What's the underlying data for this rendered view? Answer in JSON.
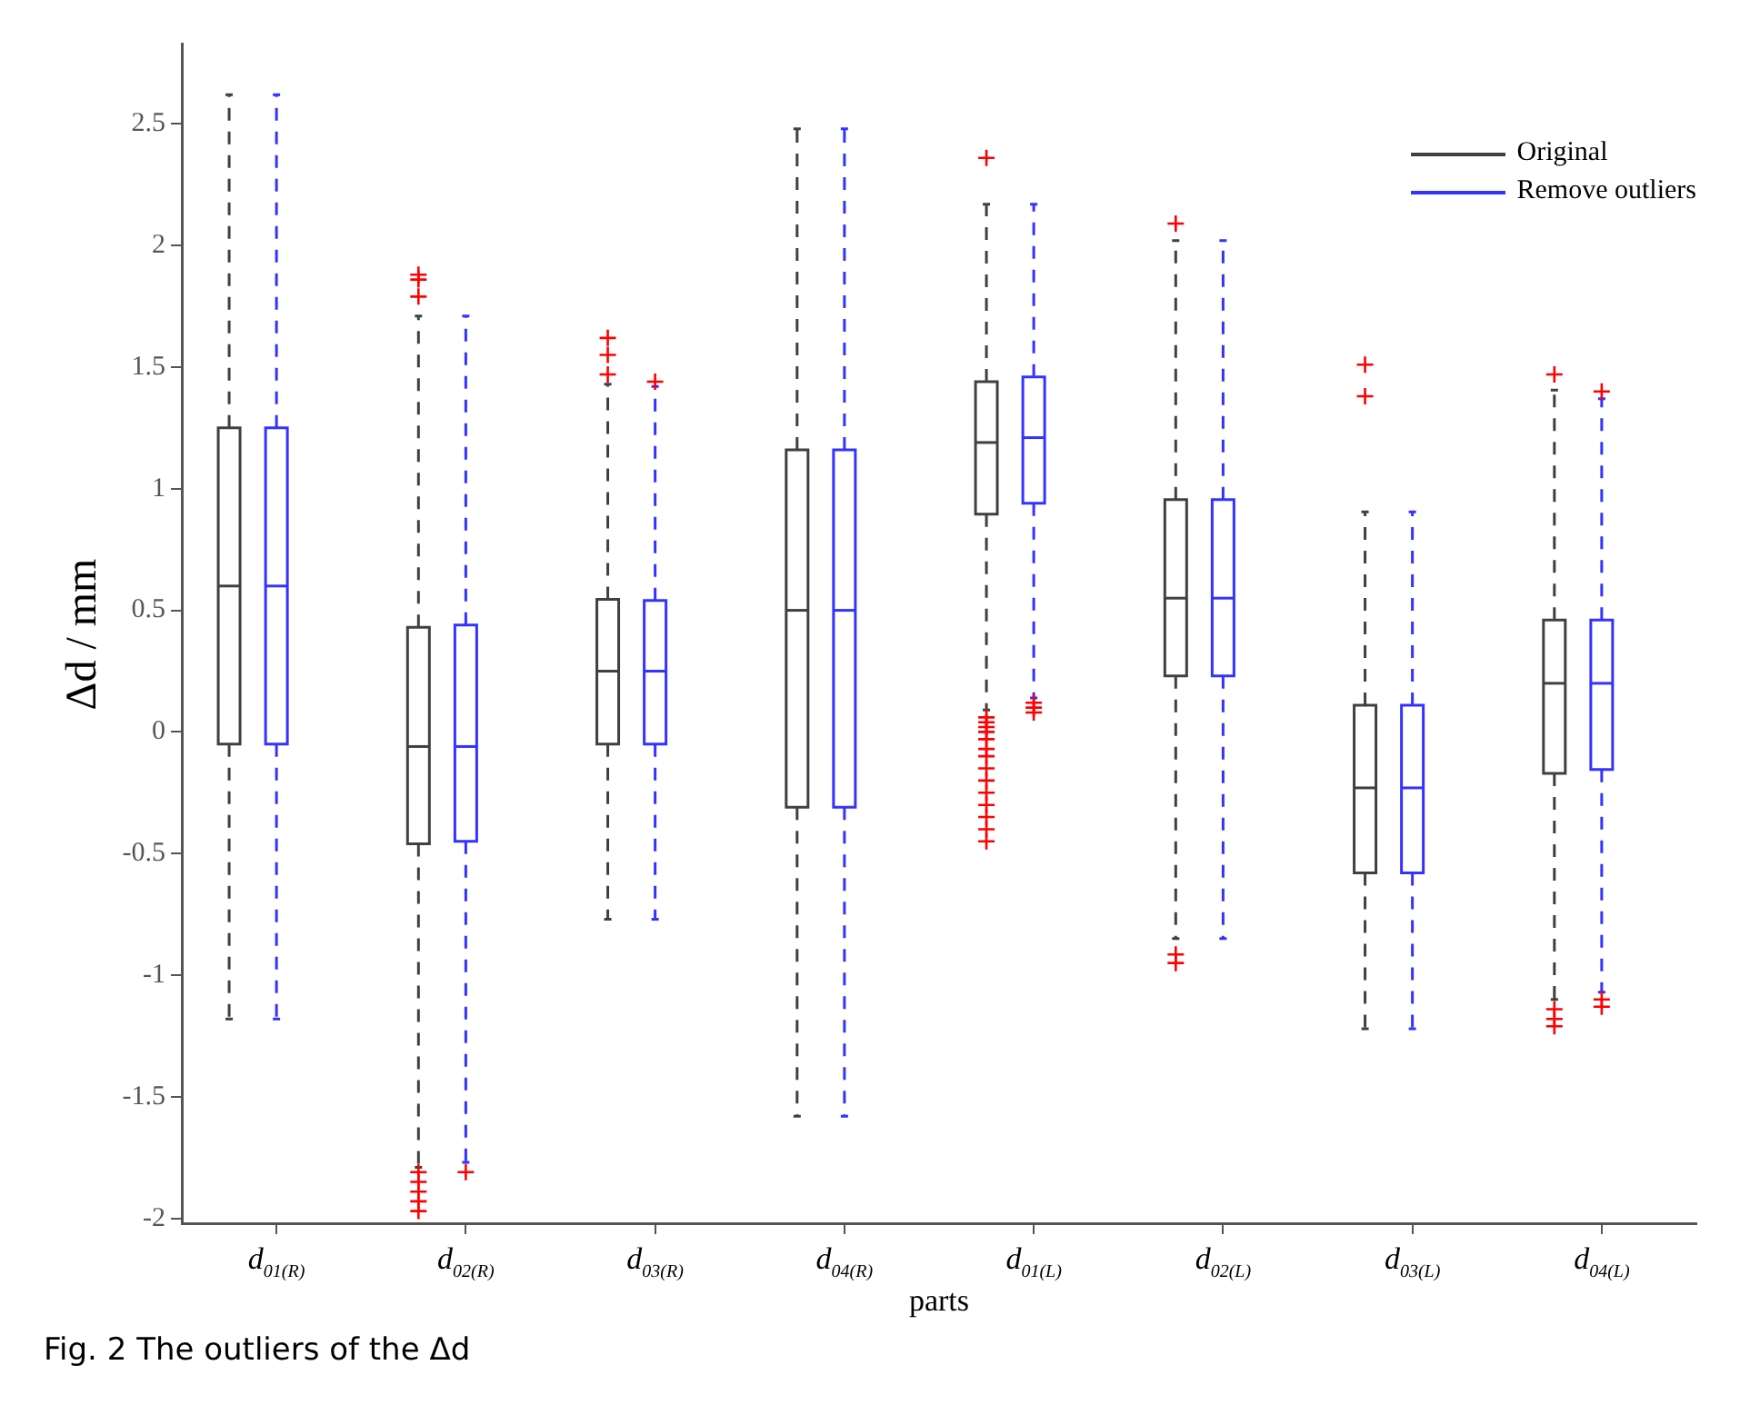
{
  "chart_data": {
    "type": "box",
    "xlabel": "parts",
    "ylabel": "Δd / mm",
    "annotations": [
      "Fig. 2  The outliers of the Δd"
    ],
    "categories": [
      "d$_{01(R)}$",
      "d$_{02(R)}$",
      "d$_{03(R)}$",
      "d$_{04(R)}$",
      "d$_{01(L)}$",
      "d$_{02(L)}$",
      "d$_{03(L)}$",
      "d$_{04(L)}$"
    ],
    "ylim": [
      -2.02,
      2.83
    ],
    "yticks": [
      -2,
      -1.5,
      -1,
      -0.5,
      0,
      0.5,
      1,
      1.5,
      2,
      2.5
    ],
    "grid": false,
    "legend": "top right",
    "marker": "cross",
    "line_style": "dashed",
    "series": [
      {
        "name": "Original",
        "color": "#404040",
        "boxes": [
          {
            "low": -1.18,
            "q1": -0.05,
            "median": 0.6,
            "q3": 1.25,
            "high": 2.62
          },
          {
            "low": -1.79,
            "q1": -0.46,
            "median": -0.06,
            "q3": 0.43,
            "high": 1.71,
            "outliers": [
              1.88,
              1.86,
              1.79,
              -1.81,
              -1.85,
              -1.89,
              -1.93,
              -1.97
            ]
          },
          {
            "low": -0.77,
            "q1": -0.05,
            "median": 0.25,
            "q3": 0.545,
            "high": 1.43,
            "outliers": [
              1.62,
              1.55,
              1.47
            ]
          },
          {
            "low": -1.58,
            "q1": -0.31,
            "median": 0.5,
            "q3": 1.16,
            "high": 2.48
          },
          {
            "low": 0.09,
            "q1": 0.895,
            "median": 1.19,
            "q3": 1.44,
            "high": 2.17,
            "outliers": [
              2.36,
              0.06,
              0.04,
              0.02,
              0,
              -0.03,
              -0.07,
              -0.1,
              -0.15,
              -0.2,
              -0.25,
              -0.3,
              -0.35,
              -0.4,
              -0.45
            ]
          },
          {
            "low": -0.85,
            "q1": 0.23,
            "median": 0.55,
            "q3": 0.955,
            "high": 2.02,
            "outliers": [
              2.09,
              -0.915,
              -0.95
            ]
          },
          {
            "low": -1.22,
            "q1": -0.58,
            "median": -0.23,
            "q3": 0.11,
            "high": 0.905,
            "outliers": [
              1.51,
              1.38
            ]
          },
          {
            "low": -1.1,
            "q1": -0.17,
            "median": 0.2,
            "q3": 0.46,
            "high": 1.405,
            "outliers": [
              1.47,
              -1.14,
              -1.18,
              -1.21
            ]
          }
        ]
      },
      {
        "name": "Remove outliers",
        "color": "#3333ff",
        "boxes": [
          {
            "low": -1.18,
            "q1": -0.05,
            "median": 0.6,
            "q3": 1.25,
            "high": 2.62
          },
          {
            "low": -1.77,
            "q1": -0.45,
            "median": -0.06,
            "q3": 0.44,
            "high": 1.71,
            "outliers": [
              -1.81
            ]
          },
          {
            "low": -0.77,
            "q1": -0.05,
            "median": 0.25,
            "q3": 0.54,
            "high": 1.42,
            "outliers": [
              1.44
            ]
          },
          {
            "low": -1.58,
            "q1": -0.31,
            "median": 0.5,
            "q3": 1.16,
            "high": 2.48
          },
          {
            "low": 0.14,
            "q1": 0.94,
            "median": 1.21,
            "q3": 1.46,
            "high": 2.17,
            "outliers": [
              0.12,
              0.1,
              0.08
            ]
          },
          {
            "low": -0.85,
            "q1": 0.23,
            "median": 0.55,
            "q3": 0.955,
            "high": 2.02
          },
          {
            "low": -1.22,
            "q1": -0.58,
            "median": -0.23,
            "q3": 0.11,
            "high": 0.905
          },
          {
            "low": -1.07,
            "q1": -0.155,
            "median": 0.2,
            "q3": 0.46,
            "high": 1.37,
            "outliers": [
              1.4,
              -1.1,
              -1.13
            ]
          }
        ]
      }
    ]
  }
}
